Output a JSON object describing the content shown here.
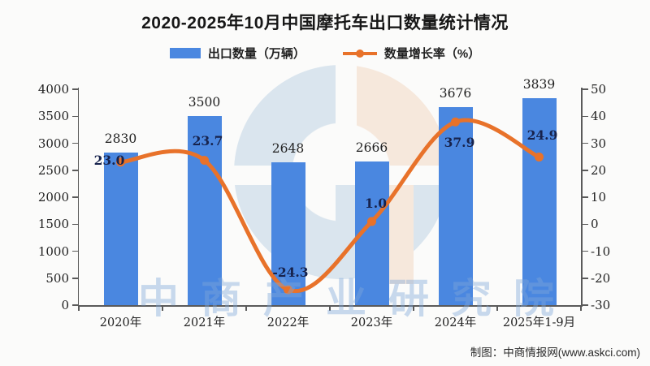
{
  "title": "2020-2025年10月中国摩托车出口数量统计情况",
  "legend": [
    {
      "label": "出口数量（万辆）",
      "color": "#4a87e0",
      "type": "bar"
    },
    {
      "label": "数量增长率（%）",
      "color": "#e8722a",
      "type": "line"
    }
  ],
  "chart_data": {
    "type": "bar+line combo",
    "title": "2020-2025年10月中国摩托车出口数量统计情况",
    "categories": [
      "2020年",
      "2021年",
      "2022年",
      "2023年",
      "2024年",
      "2025年1-9月"
    ],
    "series": [
      {
        "name": "出口数量（万辆）",
        "type": "bar",
        "axis": "left",
        "color": "#4a87e0",
        "values": [
          2830,
          3500,
          2648,
          2666,
          3676,
          3839
        ],
        "labels": [
          "2830",
          "3500",
          "2648",
          "2666",
          "3676",
          "3839"
        ]
      },
      {
        "name": "数量增长率（%）",
        "type": "line",
        "axis": "right",
        "color": "#e8722a",
        "values": [
          23.0,
          23.7,
          -24.3,
          1.0,
          37.9,
          24.9
        ],
        "labels": [
          "23.0",
          "23.7",
          "-24.3",
          "1.0",
          "37.9",
          "24.9"
        ]
      }
    ],
    "left_axis": {
      "min": 0,
      "max": 4000,
      "step": 500,
      "tick_labels": [
        "0",
        "500",
        "1000",
        "1500",
        "2000",
        "2500",
        "3000",
        "3500",
        "4000"
      ]
    },
    "right_axis": {
      "min": -30,
      "max": 50,
      "step": 10,
      "tick_labels": [
        "-30",
        "-20",
        "-10",
        "0",
        "10",
        "20",
        "30",
        "40",
        "50"
      ]
    },
    "grid": false,
    "legend_position": "top"
  },
  "watermark": {
    "text": "中商产业研究院"
  },
  "credit": "制图：中商情报网(www.askci.com)",
  "colors": {
    "bar": "#4a87e0",
    "line": "#e8722a",
    "line_label": "#17234d",
    "logo_blue": "#c7d8e7",
    "logo_peach": "#f4ddcb",
    "background": "#fbfbfa"
  }
}
